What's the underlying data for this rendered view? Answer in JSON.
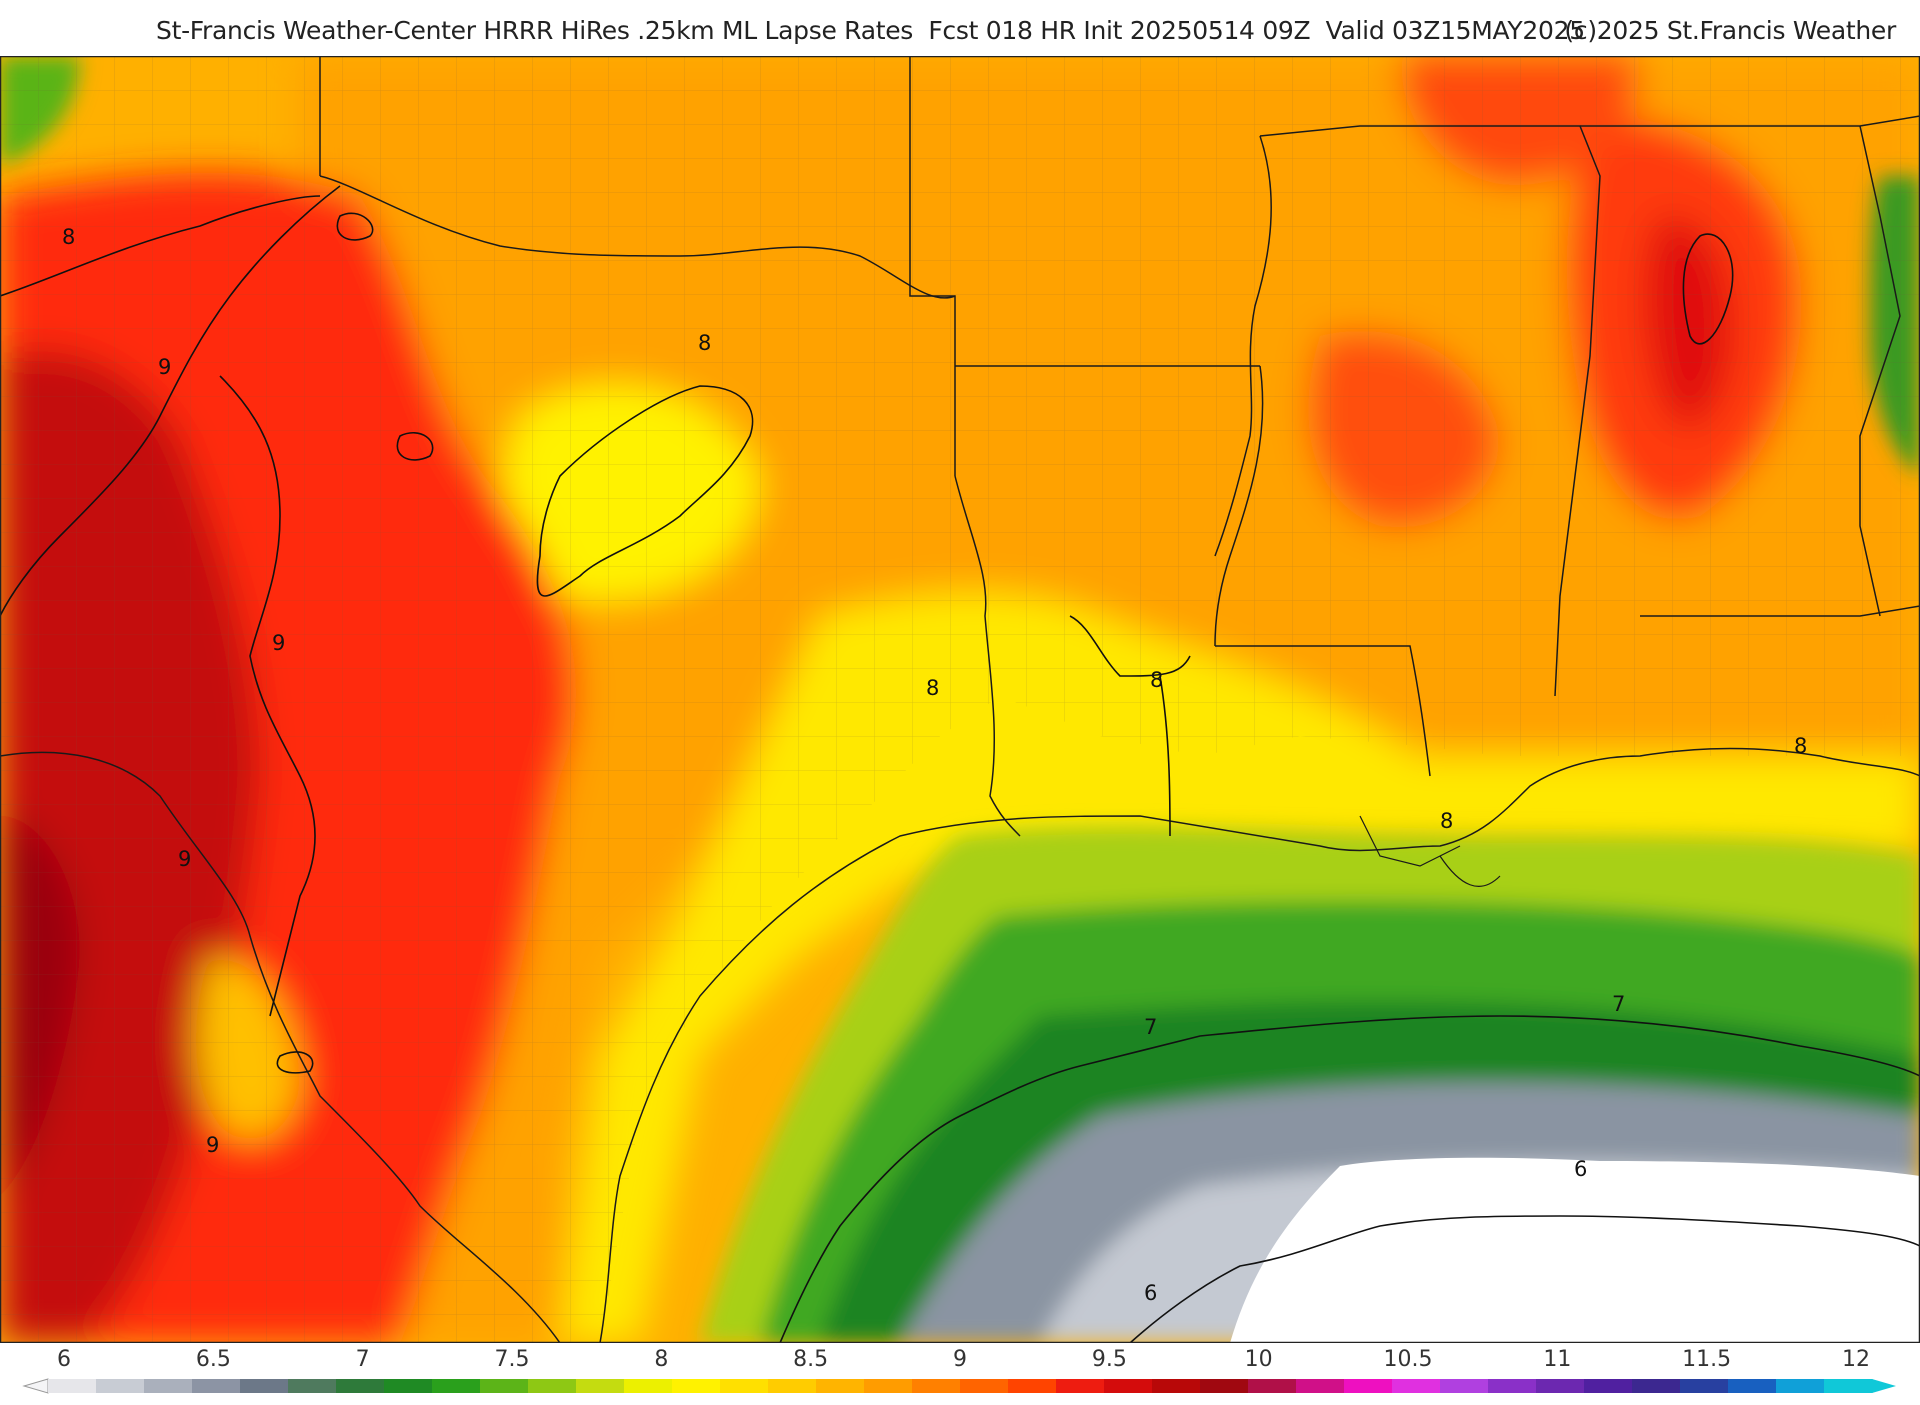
{
  "header": {
    "title": "St-Francis Weather-Center HRRR HiRes .25km ML Lapse Rates  Fcst 018 HR Init 20250514 09Z  Valid 03Z15MAY2025",
    "copyright": "(c)2025 St.Francis Weather"
  },
  "map": {
    "contour_labels": [
      {
        "id": "c8a",
        "text": "8"
      },
      {
        "id": "c9a",
        "text": "9"
      },
      {
        "id": "c8b",
        "text": "8"
      },
      {
        "id": "c9b",
        "text": "9"
      },
      {
        "id": "c8c",
        "text": "8"
      },
      {
        "id": "c8d",
        "text": "8"
      },
      {
        "id": "c9c",
        "text": "9"
      },
      {
        "id": "c8e",
        "text": "8"
      },
      {
        "id": "c8f",
        "text": "8"
      },
      {
        "id": "c7a",
        "text": "7"
      },
      {
        "id": "c7b",
        "text": "7"
      },
      {
        "id": "c9d",
        "text": "9"
      },
      {
        "id": "c6a",
        "text": "6"
      },
      {
        "id": "c6b",
        "text": "6"
      }
    ]
  },
  "colorbar": {
    "ticks": [
      "6",
      "6.5",
      "7",
      "7.5",
      "8",
      "8.5",
      "9",
      "9.5",
      "10",
      "10.5",
      "11",
      "11.5",
      "12"
    ],
    "colors": [
      "#e6e6ea",
      "#c8ccd4",
      "#aab0bc",
      "#8c94a4",
      "#6c7888",
      "#4f7a5e",
      "#2e7a3a",
      "#1f8a24",
      "#2aa01c",
      "#5cb418",
      "#8ec814",
      "#c4dc10",
      "#ecf000",
      "#fff200",
      "#ffe000",
      "#ffcc00",
      "#ffb400",
      "#ff9c00",
      "#ff8000",
      "#ff6400",
      "#ff4400",
      "#ee1c10",
      "#d40c0c",
      "#b80808",
      "#a00810",
      "#b01048",
      "#d01088",
      "#ee10c0",
      "#e030e0",
      "#b040e0",
      "#8a30c8",
      "#6c28b0",
      "#5020a0",
      "#3c2890",
      "#2840a0",
      "#1860c0",
      "#10a0d8",
      "#10c8d8"
    ]
  }
}
